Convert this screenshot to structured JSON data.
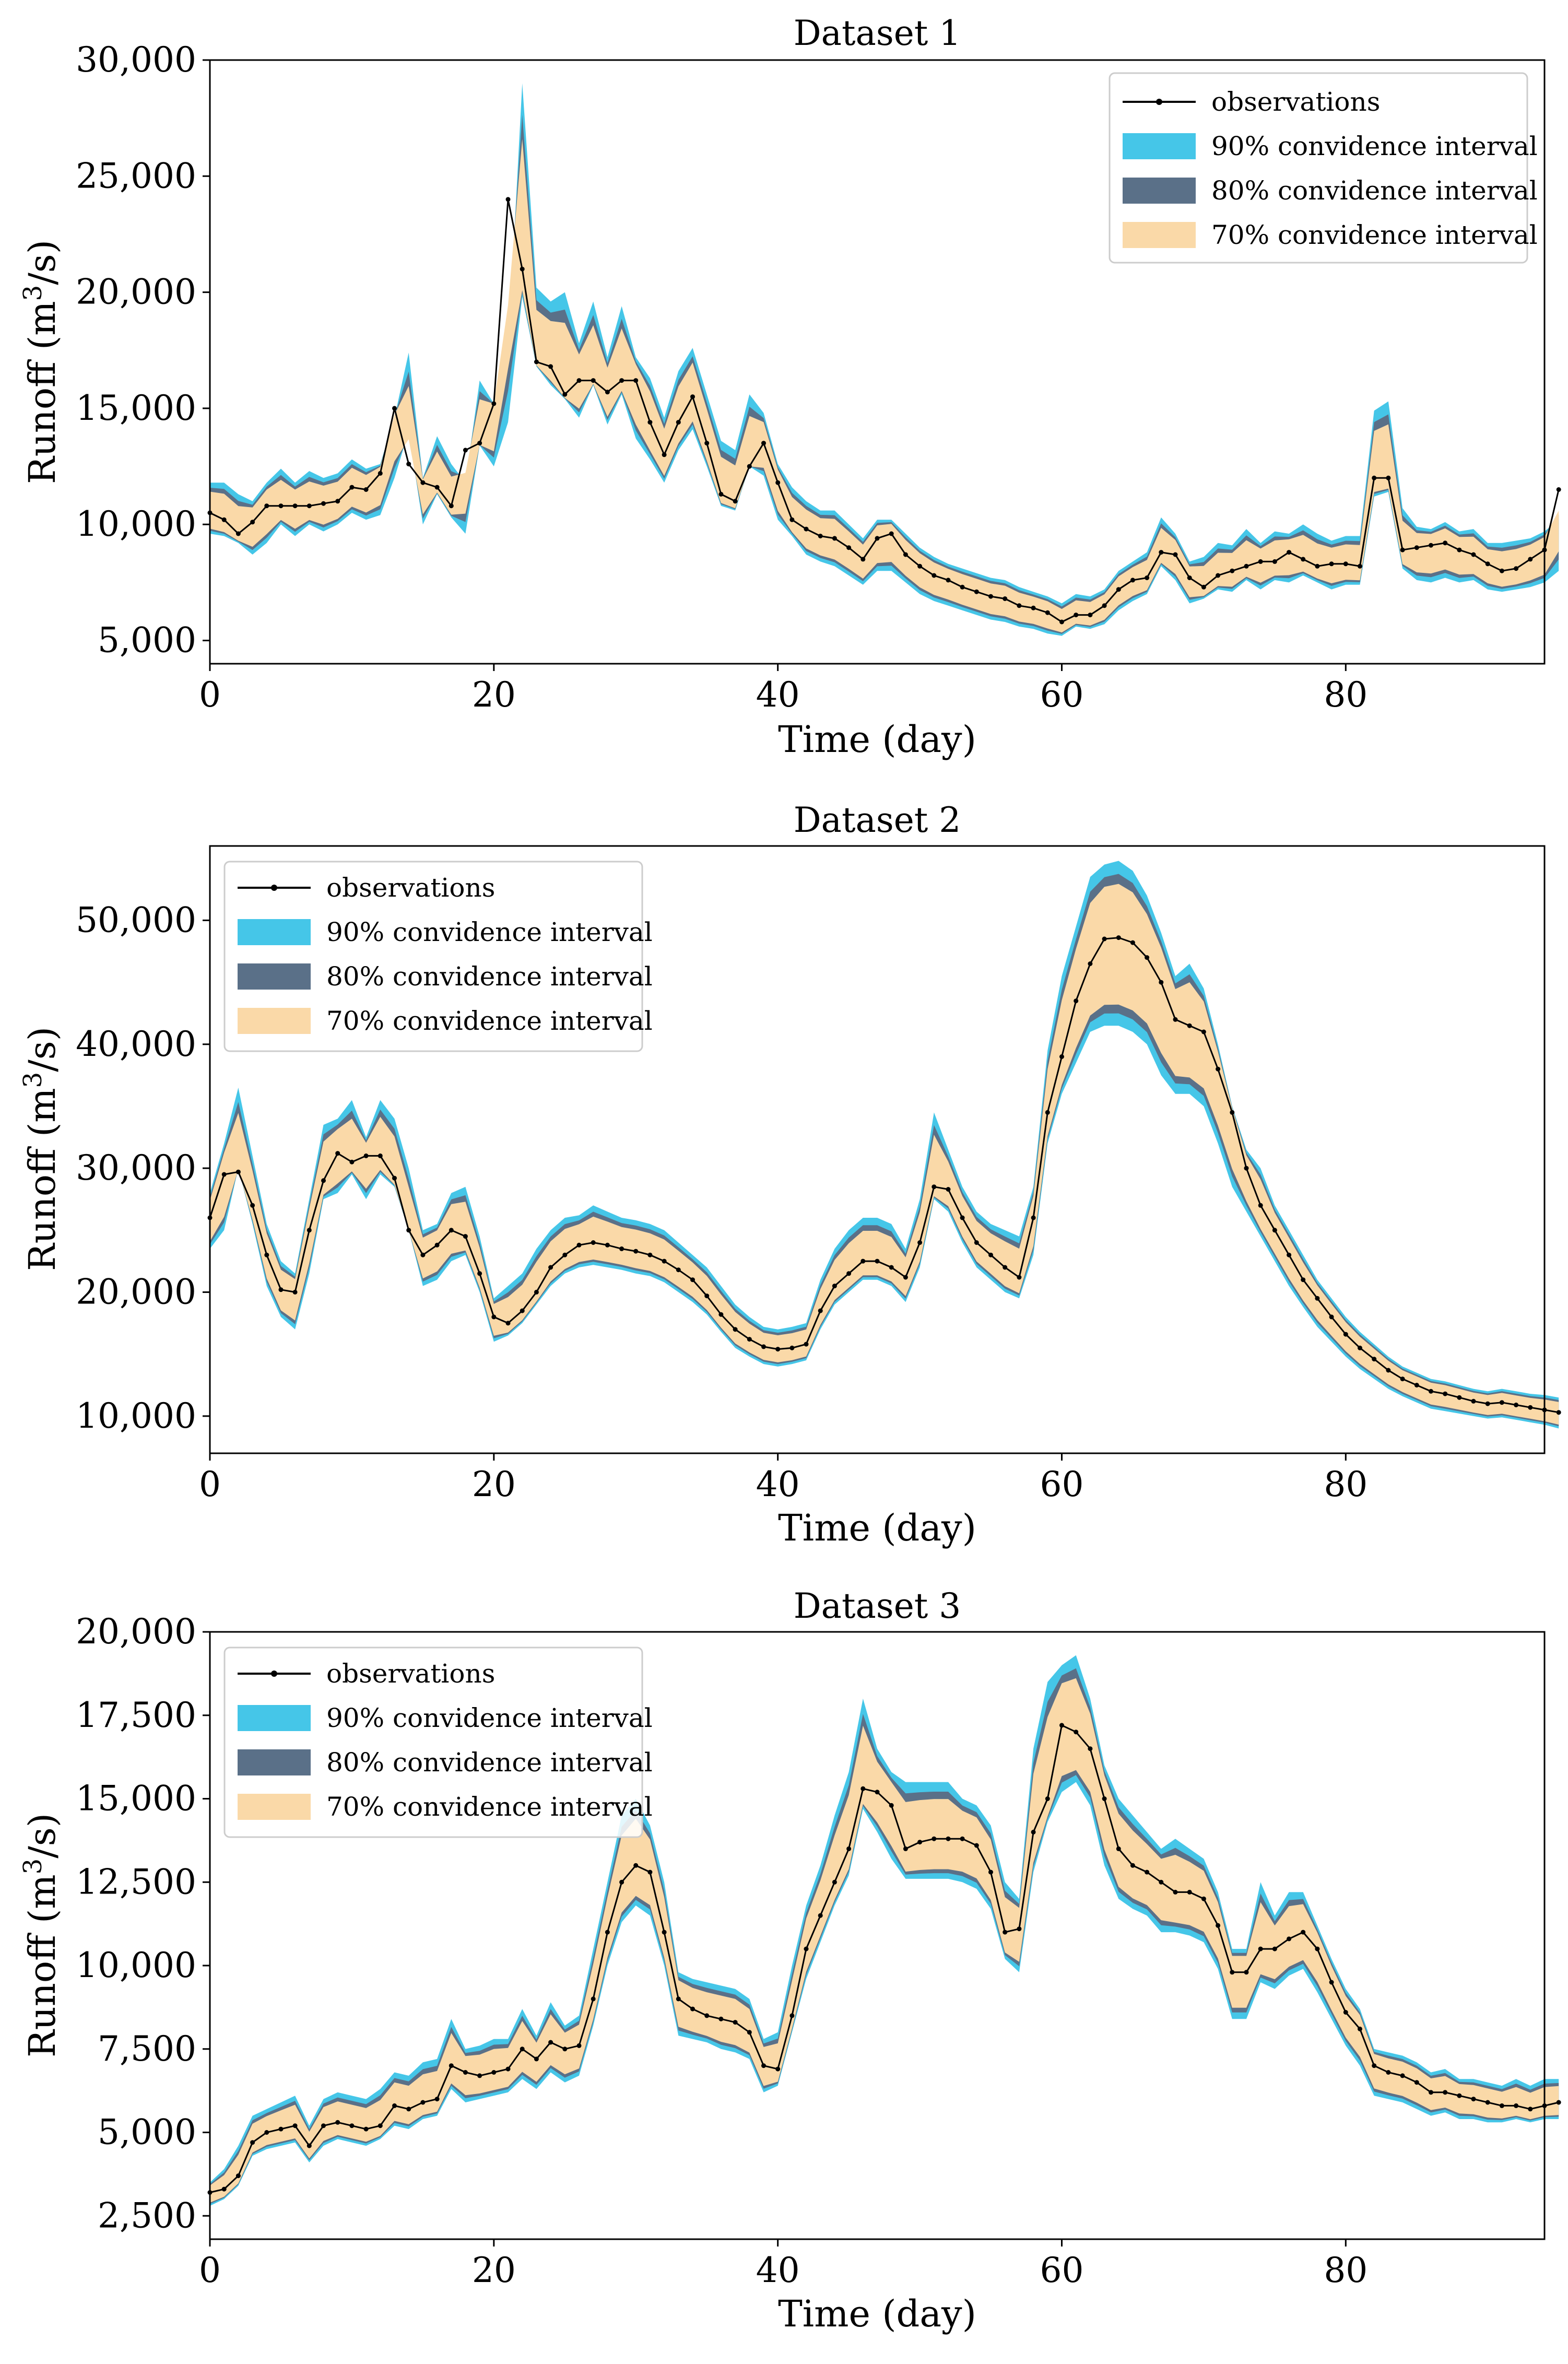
{
  "colors": {
    "ci90": "#45c6e8",
    "ci80": "#5a7088",
    "ci70": "#fad9a8",
    "observations": "#000000"
  },
  "legend_labels": {
    "observations": "observations",
    "ci90": "90% convidence interval",
    "ci80": "80% convidence interval",
    "ci70": "70% convidence interval"
  },
  "chart_data": [
    {
      "type": "area",
      "title": "Dataset 1",
      "xlabel": "Time (day)",
      "ylabel_main": "Runoff (m",
      "ylabel_sup": "3",
      "ylabel_end": "/s)",
      "xlim": [
        0,
        94
      ],
      "ylim": [
        4000,
        30000
      ],
      "xticks": [
        0,
        20,
        40,
        60,
        80
      ],
      "yticks": [
        5000,
        10000,
        15000,
        20000,
        25000,
        30000
      ],
      "ytick_labels": [
        "5,000",
        "10,000",
        "15,000",
        "20,000",
        "25,000",
        "30,000"
      ],
      "legend_position": "upper-right",
      "observations": [
        10500,
        10200,
        9600,
        10100,
        10800,
        10800,
        10800,
        10800,
        10900,
        11000,
        11600,
        11500,
        12200,
        15000,
        12600,
        11800,
        11600,
        10800,
        13200,
        13500,
        15200,
        24000,
        21000,
        17000,
        16800,
        15600,
        16200,
        16200,
        15700,
        16200,
        16200,
        14400,
        13000,
        14400,
        15500,
        13500,
        11300,
        11000,
        12500,
        13500,
        11800,
        10200,
        9800,
        9500,
        9400,
        9000,
        8500,
        9400,
        9600,
        8700,
        8200,
        7800,
        7600,
        7300,
        7100,
        6900,
        6800,
        6500,
        6400,
        6200,
        5800,
        6100,
        6100,
        6500,
        7200,
        7600,
        7700,
        8800,
        8700,
        7700,
        7300,
        7800,
        8000,
        8200,
        8400,
        8400,
        8800,
        8500,
        8200,
        8300,
        8300,
        8200,
        12000,
        12000,
        8900,
        9000,
        9100,
        9200,
        8900,
        8700,
        8300,
        8000,
        8100,
        8500,
        8900,
        11500
      ],
      "upper90": [
        11800,
        11800,
        11300,
        11000,
        11800,
        12400,
        11800,
        12300,
        12000,
        12200,
        12800,
        12400,
        12600,
        14600,
        17400,
        12000,
        13800,
        12600,
        11800,
        16200,
        15200,
        17500,
        29000,
        20200,
        19600,
        20000,
        17800,
        19600,
        17200,
        19400,
        17200,
        16300,
        14600,
        16600,
        17600,
        15600,
        13600,
        13200,
        15600,
        14800,
        12600,
        11600,
        11000,
        10600,
        10600,
        10000,
        9400,
        10200,
        10200,
        9600,
        9000,
        8600,
        8300,
        8100,
        7900,
        7700,
        7600,
        7300,
        7100,
        6900,
        6600,
        7000,
        6900,
        7200,
        8000,
        8400,
        8800,
        10300,
        9600,
        8400,
        8600,
        9200,
        9100,
        9800,
        9200,
        9700,
        9600,
        10000,
        9600,
        9300,
        9500,
        9500,
        14900,
        15300,
        10700,
        9900,
        9800,
        10100,
        9700,
        9800,
        9200,
        9200,
        9300,
        9400,
        9700,
        10200
      ],
      "lower90": [
        9600,
        9500,
        9200,
        8700,
        9200,
        10000,
        9500,
        10000,
        9700,
        10000,
        10500,
        10200,
        10400,
        12000,
        14000,
        10000,
        11300,
        10300,
        9600,
        13400,
        12500,
        14400,
        19800,
        16800,
        16000,
        15400,
        14600,
        16000,
        14300,
        15600,
        13700,
        12800,
        11800,
        13200,
        14100,
        12500,
        10800,
        10600,
        12500,
        12100,
        10200,
        9500,
        8700,
        8400,
        8200,
        7800,
        7400,
        8000,
        8000,
        7500,
        7000,
        6700,
        6500,
        6300,
        6100,
        5900,
        5800,
        5600,
        5500,
        5300,
        5200,
        5600,
        5500,
        5700,
        6300,
        6700,
        7000,
        8200,
        7600,
        6600,
        6800,
        7200,
        7100,
        7600,
        7200,
        7600,
        7500,
        7800,
        7500,
        7200,
        7400,
        7400,
        11200,
        11400,
        8100,
        7600,
        7500,
        7700,
        7500,
        7600,
        7200,
        7100,
        7200,
        7300,
        7500,
        8000
      ]
    },
    {
      "type": "area",
      "title": "Dataset 2",
      "xlabel": "Time (day)",
      "ylabel_main": "Runoff (m",
      "ylabel_sup": "3",
      "ylabel_end": "/s)",
      "xlim": [
        0,
        94
      ],
      "ylim": [
        7000,
        56000
      ],
      "xticks": [
        0,
        20,
        40,
        60,
        80
      ],
      "yticks": [
        10000,
        20000,
        30000,
        40000,
        50000
      ],
      "ytick_labels": [
        "10,000",
        "20,000",
        "30,000",
        "40,000",
        "50,000"
      ],
      "legend_position": "upper-left",
      "observations": [
        26000,
        29500,
        29700,
        27000,
        23000,
        20200,
        20000,
        25000,
        29000,
        31200,
        30500,
        31000,
        31000,
        29200,
        25000,
        23000,
        23800,
        25000,
        24500,
        21500,
        18000,
        17500,
        18500,
        20000,
        22000,
        23000,
        23800,
        24000,
        23800,
        23500,
        23300,
        23000,
        22500,
        21800,
        21000,
        19700,
        18200,
        17000,
        16200,
        15600,
        15400,
        15500,
        15800,
        18500,
        20500,
        21500,
        22500,
        22500,
        22000,
        21200,
        24000,
        28500,
        28300,
        26000,
        24000,
        23000,
        22000,
        21200,
        26000,
        34500,
        39000,
        43500,
        46500,
        48500,
        48600,
        48200,
        47000,
        45000,
        42000,
        41500,
        41000,
        38000,
        34500,
        30000,
        27000,
        25000,
        23000,
        21000,
        19500,
        18000,
        16600,
        15500,
        14600,
        13700,
        13000,
        12500,
        12000,
        11800,
        11500,
        11200,
        11000,
        11100,
        10900,
        10700,
        10500,
        10300
      ],
      "upper90": [
        28000,
        32000,
        36500,
        31000,
        25500,
        22500,
        21500,
        27500,
        33500,
        34000,
        35500,
        32500,
        35500,
        34000,
        30000,
        25000,
        25500,
        28000,
        28500,
        24500,
        19500,
        20500,
        21500,
        23500,
        25000,
        26000,
        26200,
        27000,
        26500,
        26000,
        25800,
        25500,
        25000,
        24000,
        23000,
        22000,
        20500,
        19000,
        18000,
        17200,
        17000,
        17200,
        17500,
        21000,
        23500,
        25000,
        26000,
        26000,
        25500,
        23500,
        27500,
        34500,
        31500,
        28500,
        26500,
        25500,
        25000,
        24500,
        28500,
        39500,
        45500,
        49500,
        53500,
        54500,
        54800,
        54000,
        52000,
        49000,
        45500,
        46500,
        44500,
        40000,
        35000,
        31500,
        30000,
        27000,
        25000,
        23000,
        21000,
        19500,
        18000,
        16800,
        15800,
        14800,
        14000,
        13500,
        13000,
        12800,
        12500,
        12200,
        12000,
        12200,
        12000,
        11800,
        11700,
        11500
      ],
      "lower90": [
        23500,
        25000,
        30000,
        25500,
        20500,
        18000,
        17000,
        21500,
        27500,
        28000,
        29500,
        27500,
        29500,
        28500,
        25000,
        20500,
        21000,
        22500,
        23000,
        20000,
        16000,
        16500,
        17500,
        19000,
        20500,
        21500,
        22000,
        22200,
        22000,
        21800,
        21500,
        21300,
        20800,
        20000,
        19200,
        18200,
        16800,
        15500,
        14800,
        14200,
        14000,
        14200,
        14500,
        17000,
        19000,
        20000,
        21000,
        21000,
        20500,
        19200,
        22000,
        27500,
        26500,
        24000,
        22000,
        21000,
        20000,
        19500,
        23000,
        32000,
        36000,
        38500,
        41000,
        41500,
        41500,
        41000,
        40000,
        37500,
        36000,
        36000,
        35000,
        32000,
        28500,
        26500,
        24500,
        22500,
        20500,
        18800,
        17200,
        16000,
        14800,
        13800,
        13000,
        12200,
        11600,
        11100,
        10600,
        10400,
        10200,
        10000,
        9800,
        9900,
        9700,
        9500,
        9300,
        9000
      ]
    },
    {
      "type": "area",
      "title": "Dataset 3",
      "xlabel": "Time (day)",
      "ylabel_main": "Runoff (m",
      "ylabel_sup": "3",
      "ylabel_end": "/s)",
      "xlim": [
        0,
        94
      ],
      "ylim": [
        1800,
        20000
      ],
      "xticks": [
        0,
        20,
        40,
        60,
        80
      ],
      "yticks": [
        2500,
        5000,
        7500,
        10000,
        12500,
        15000,
        17500,
        20000
      ],
      "ytick_labels": [
        "2,500",
        "5,000",
        "7,500",
        "10,000",
        "12,500",
        "15,000",
        "17,500",
        "20,000"
      ],
      "legend_position": "upper-left",
      "observations": [
        3200,
        3300,
        3700,
        4700,
        5000,
        5100,
        5200,
        4600,
        5200,
        5300,
        5200,
        5100,
        5200,
        5800,
        5700,
        5900,
        6000,
        7000,
        6800,
        6700,
        6800,
        6900,
        7500,
        7200,
        7700,
        7500,
        7600,
        9000,
        11000,
        12500,
        13000,
        12800,
        11000,
        9000,
        8700,
        8500,
        8400,
        8300,
        8000,
        7000,
        6900,
        8500,
        10500,
        11500,
        12500,
        13500,
        15300,
        15200,
        14800,
        13500,
        13700,
        13800,
        13800,
        13800,
        13600,
        12800,
        11000,
        11100,
        14000,
        15000,
        17200,
        17000,
        16500,
        15000,
        13500,
        13000,
        12800,
        12500,
        12200,
        12200,
        12000,
        11200,
        9800,
        9800,
        10500,
        10500,
        10800,
        11000,
        10500,
        9500,
        8600,
        8100,
        7000,
        6800,
        6700,
        6500,
        6200,
        6200,
        6100,
        6000,
        5900,
        5800,
        5800,
        5700,
        5800,
        5900
      ],
      "upper90": [
        3500,
        3900,
        4600,
        5500,
        5700,
        5900,
        6100,
        5200,
        6000,
        6200,
        6100,
        6000,
        6300,
        6800,
        6700,
        7100,
        7200,
        8400,
        7500,
        7600,
        7800,
        7800,
        8700,
        7900,
        8900,
        8200,
        8500,
        10500,
        12500,
        14500,
        15000,
        14200,
        12500,
        9800,
        9600,
        9500,
        9400,
        9300,
        9000,
        7800,
        8000,
        10000,
        11800,
        13000,
        14500,
        15800,
        18000,
        16500,
        15800,
        15500,
        15500,
        15500,
        15500,
        15000,
        14800,
        14200,
        12500,
        12000,
        16500,
        18500,
        19000,
        19300,
        18000,
        16000,
        15000,
        14500,
        14000,
        13500,
        13800,
        13500,
        13200,
        12200,
        10500,
        10500,
        12500,
        11500,
        12200,
        12200,
        11200,
        10200,
        9300,
        8700,
        7500,
        7400,
        7300,
        7100,
        6800,
        6900,
        6600,
        6600,
        6500,
        6400,
        6600,
        6400,
        6600,
        6600
      ],
      "lower90": [
        2800,
        3000,
        3400,
        4300,
        4500,
        4600,
        4700,
        4100,
        4600,
        4800,
        4700,
        4600,
        4800,
        5200,
        5100,
        5400,
        5500,
        6300,
        5900,
        6000,
        6100,
        6200,
        6600,
        6300,
        6800,
        6500,
        6700,
        8200,
        10000,
        11300,
        11800,
        11500,
        10000,
        7900,
        7800,
        7700,
        7500,
        7400,
        7200,
        6200,
        6400,
        8000,
        9600,
        10700,
        11800,
        12700,
        14700,
        14000,
        13200,
        12600,
        12600,
        12600,
        12600,
        12500,
        12300,
        11700,
        10200,
        9800,
        12800,
        14300,
        15200,
        15500,
        14800,
        13000,
        12000,
        11700,
        11500,
        11000,
        11000,
        10900,
        10700,
        9900,
        8400,
        8400,
        9500,
        9300,
        9700,
        9900,
        9200,
        8400,
        7600,
        7000,
        6100,
        6000,
        5900,
        5700,
        5500,
        5600,
        5400,
        5400,
        5300,
        5300,
        5400,
        5300,
        5400,
        5400
      ]
    }
  ]
}
